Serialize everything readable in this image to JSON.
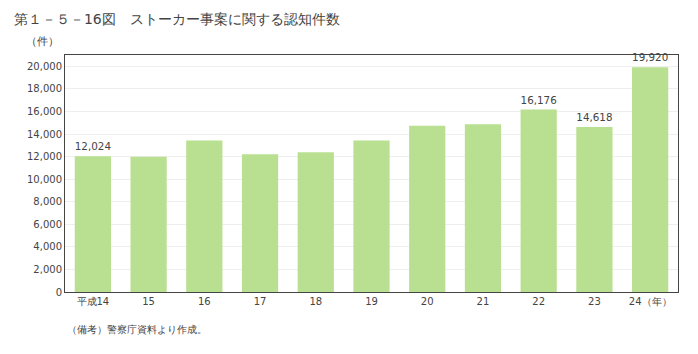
{
  "chart_data": {
    "type": "bar",
    "title": "第１－５－16図　ストーカー事案に関する認知件数",
    "ylabel": "（件）",
    "annotations": [
      "（備考）警察庁資料より作成。"
    ],
    "categories": [
      "平成14",
      "15",
      "16",
      "17",
      "18",
      "19",
      "20",
      "21",
      "22",
      "23",
      "24（年）"
    ],
    "values": [
      12024,
      11978,
      13418,
      12208,
      12377,
      13415,
      14720,
      14863,
      16176,
      14618,
      19920
    ],
    "data_labels": true,
    "value_labels": [
      "12,024",
      null,
      null,
      null,
      null,
      null,
      null,
      null,
      "16,176",
      "14,618",
      "19,920"
    ],
    "color": "#b8e090",
    "ylim": [
      0,
      21000
    ],
    "yticks": [
      0,
      {
        "value": 2000,
        "label": "2,000"
      },
      {
        "value": 4000,
        "label": "4,000"
      },
      {
        "value": 6000,
        "label": "6,000"
      },
      {
        "value": 8000,
        "label": "8,000"
      },
      {
        "value": 10000,
        "label": "10,000"
      },
      {
        "value": 12000,
        "label": "12,000"
      },
      {
        "value": 14000,
        "label": "14,000"
      },
      {
        "value": 16000,
        "label": "16,000"
      },
      {
        "value": 18000,
        "label": "18,000"
      },
      {
        "value": 20000,
        "label": "20,000"
      }
    ],
    "grid": true
  }
}
